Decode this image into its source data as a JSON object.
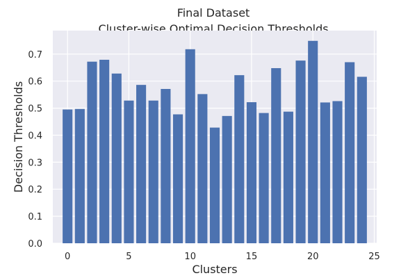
{
  "chart_data": {
    "type": "bar",
    "title": "Final Dataset",
    "subtitle": "Cluster-wise Optimal Decision Thresholds",
    "xlabel": "Clusters",
    "ylabel": "Decision Thresholds",
    "x": [
      0,
      1,
      2,
      3,
      4,
      5,
      6,
      7,
      8,
      9,
      10,
      11,
      12,
      13,
      14,
      15,
      16,
      17,
      18,
      19,
      20,
      21,
      22,
      23,
      24
    ],
    "values": [
      0.495,
      0.497,
      0.672,
      0.679,
      0.628,
      0.528,
      0.586,
      0.528,
      0.571,
      0.477,
      0.718,
      0.552,
      0.428,
      0.471,
      0.622,
      0.522,
      0.482,
      0.648,
      0.487,
      0.676,
      0.749,
      0.521,
      0.526,
      0.67,
      0.616
    ],
    "xticks": [
      0,
      5,
      10,
      15,
      20,
      25
    ],
    "yticks": [
      0.0,
      0.1,
      0.2,
      0.3,
      0.4,
      0.5,
      0.6,
      0.7
    ],
    "xlim": [
      -1.2,
      25.2
    ],
    "ylim": [
      0,
      0.787
    ],
    "grid": true,
    "colors": {
      "bar": "#4c72b0",
      "plot_bg": "#eaeaf2",
      "grid": "#ffffff"
    }
  }
}
